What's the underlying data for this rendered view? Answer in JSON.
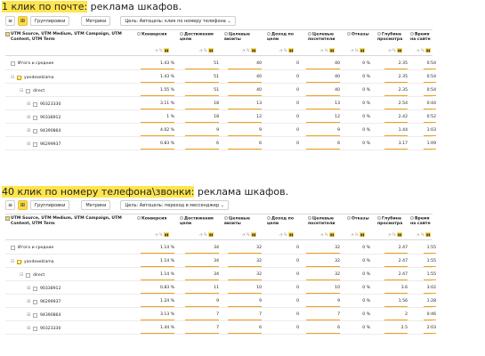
{
  "sections": [
    {
      "caption_hl": "1 клик по почте:",
      "caption_rest": " реклама шкафов.",
      "toolbar": {
        "group_label": "Группировки",
        "metrics_label": "Метрики",
        "goal_select": "Цель: Автоцель: клик по номеру телефона"
      },
      "headers": {
        "first": "UTM Source, UTM Medium, UTM Campaign, UTM Content, UTM Term",
        "cols": [
          "Конверсия",
          "Достижения цели",
          "Целевые визиты",
          "Доход по цели",
          "Целевые посетители",
          "Отказы",
          "Глубина просмотра",
          "Время на сайте"
        ]
      },
      "rows": [
        {
          "label": "Итого и средние",
          "vals": [
            "1.43 %",
            "51",
            "40",
            "0",
            "40",
            "0 %",
            "2.35",
            "0:54"
          ]
        },
        {
          "label": "yandexeklama",
          "vals": [
            "1.43 %",
            "51",
            "40",
            "0",
            "40",
            "0 %",
            "2.35",
            "0:54"
          ]
        },
        {
          "label": "direct",
          "vals": [
            "1.55 %",
            "51",
            "40",
            "0",
            "40",
            "0 %",
            "2.35",
            "0:54"
          ]
        },
        {
          "label": "90323330",
          "vals": [
            "3.11 %",
            "18",
            "13",
            "0",
            "13",
            "0 %",
            "2.54",
            "0:44"
          ]
        },
        {
          "label": "90338912",
          "vals": [
            "1 %",
            "18",
            "12",
            "0",
            "12",
            "0 %",
            "2.42",
            "0:52"
          ]
        },
        {
          "label": "94390864",
          "vals": [
            "4.02 %",
            "9",
            "9",
            "0",
            "9",
            "0 %",
            "1.44",
            "1:03"
          ]
        },
        {
          "label": "96299937",
          "vals": [
            "0.83 %",
            "6",
            "6",
            "0",
            "6",
            "0 %",
            "3.17",
            "1:09"
          ]
        }
      ]
    },
    {
      "caption_hl": "40 клик по номеру телефона\\звонки:",
      "caption_rest": " реклама шкафов.",
      "toolbar": {
        "group_label": "Группировки",
        "metrics_label": "Метрики",
        "goal_select": "Цель: Автоцель: переход в мессенджер"
      },
      "headers": {
        "first": "UTM Source, UTM Medium, UTM Campaign, UTM Content, UTM Term",
        "cols": [
          "Конверсия",
          "Достижения цели",
          "Целевые визиты",
          "Доход по цели",
          "Целевые посетители",
          "Отказы",
          "Глубина просмотра",
          "Время на сайте"
        ]
      },
      "rows": [
        {
          "label": "Итого и средние",
          "vals": [
            "1.14 %",
            "34",
            "32",
            "0",
            "32",
            "0 %",
            "2.47",
            "1:55"
          ]
        },
        {
          "label": "yandexeklama",
          "vals": [
            "1.14 %",
            "34",
            "32",
            "0",
            "32",
            "0 %",
            "2.47",
            "1:55"
          ]
        },
        {
          "label": "direct",
          "vals": [
            "1.14 %",
            "34",
            "32",
            "0",
            "32",
            "0 %",
            "2.47",
            "1:55"
          ]
        },
        {
          "label": "90338912",
          "vals": [
            "0.83 %",
            "11",
            "10",
            "0",
            "10",
            "0 %",
            "3.6",
            "3:02"
          ]
        },
        {
          "label": "96299937",
          "vals": [
            "1.24 %",
            "9",
            "9",
            "0",
            "9",
            "0 %",
            "1.56",
            "1:28"
          ]
        },
        {
          "label": "94390864",
          "vals": [
            "3.13 %",
            "7",
            "7",
            "0",
            "7",
            "0 %",
            "2",
            "0:46"
          ]
        },
        {
          "label": "90323330",
          "vals": [
            "1.44 %",
            "7",
            "6",
            "0",
            "6",
            "0 %",
            "2.5",
            "2:03"
          ]
        }
      ]
    }
  ],
  "icons": {
    "list": "list-icon",
    "tree": "tree-icon",
    "check": "checkbox-icon",
    "expand": "expand-icon",
    "collapse": "collapse-icon"
  },
  "colors": {
    "highlight": "#ffe54d",
    "accent": "#ffdb4d",
    "bar": "#f0a020"
  }
}
